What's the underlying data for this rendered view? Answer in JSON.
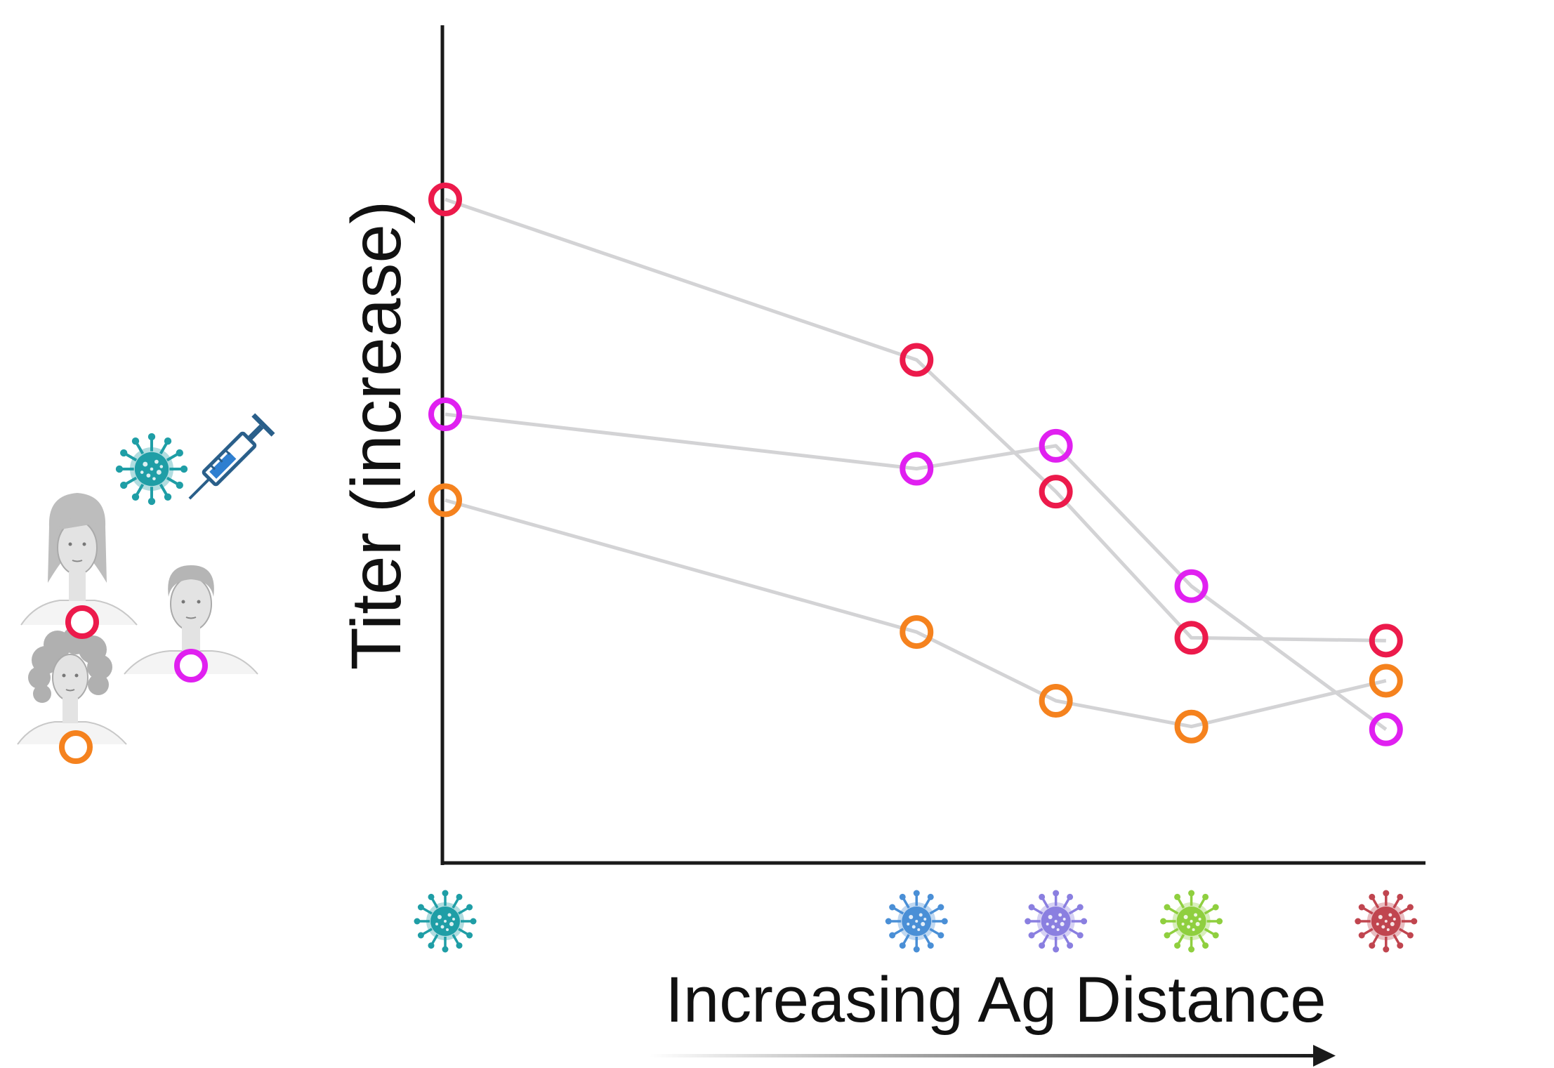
{
  "chart_data": {
    "type": "line",
    "title": "",
    "xlabel": "Increasing Ag Distance",
    "ylabel": "Titer (increase)",
    "x": [
      0,
      2.47,
      3.2,
      3.91,
      4.93
    ],
    "xlim": [
      0,
      5.1
    ],
    "ylim": [
      0,
      10
    ],
    "grid": false,
    "legend": "left",
    "x_tick_icons": [
      {
        "icon": "virus-icon",
        "color": "#1f9ea6"
      },
      {
        "icon": "virus-icon",
        "color": "#4a8fd6"
      },
      {
        "icon": "virus-icon",
        "color": "#8a7fe0"
      },
      {
        "icon": "virus-icon",
        "color": "#8fcf3f"
      },
      {
        "icon": "virus-icon",
        "color": "#c0454f"
      }
    ],
    "series": [
      {
        "icon": "woman-avatar-icon",
        "color": "#ec1a4b",
        "values": [
          10.0,
          7.2,
          4.9,
          2.35,
          2.3
        ]
      },
      {
        "icon": "man-avatar-icon",
        "color": "#e020f0",
        "values": [
          6.25,
          5.3,
          5.7,
          3.25,
          0.75
        ]
      },
      {
        "icon": "curly-hair-woman-avatar-icon",
        "color": "#f5821e",
        "values": [
          4.75,
          2.45,
          1.25,
          0.8,
          1.6
        ]
      }
    ],
    "legend_icons": {
      "virus": {
        "icon": "virus-icon",
        "color": "#1f9ea6"
      },
      "vaccine": {
        "icon": "syringe-icon",
        "color": "#2a6fba"
      }
    }
  }
}
